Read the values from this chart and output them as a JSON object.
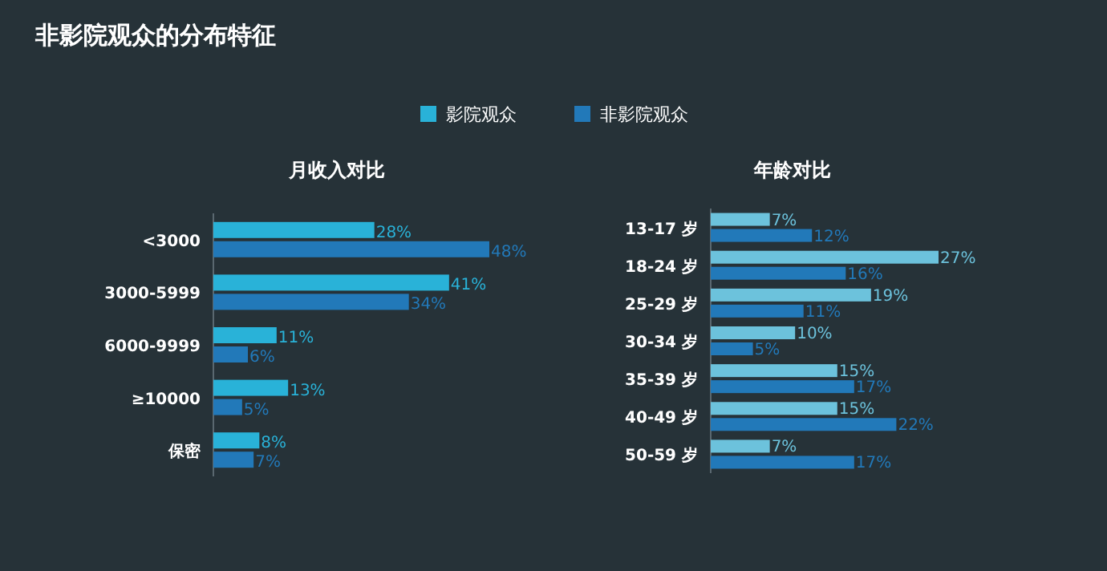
{
  "chart_data": [
    {
      "type": "bar",
      "orientation": "horizontal",
      "title": "非影院观众的分布特征",
      "subtitle": "月收入对比",
      "categories": [
        "<3000",
        "3000-5999",
        "6000-9999",
        "≥10000",
        "保密"
      ],
      "legend": "top",
      "series": [
        {
          "name": "影院观众",
          "color": "#29b2d8",
          "values": [
            28,
            41,
            11,
            13,
            8
          ],
          "value_labels": [
            "28%",
            "41%",
            "11%",
            "13%",
            "8%"
          ]
        },
        {
          "name": "非影院观众",
          "color": "#2279b9",
          "values": [
            48,
            34,
            6,
            5,
            7
          ],
          "value_labels": [
            "48%",
            "34%",
            "6%",
            "5%",
            "7%"
          ]
        }
      ]
    },
    {
      "type": "bar",
      "orientation": "horizontal",
      "subtitle": "年龄对比",
      "categories": [
        "13-17 岁",
        "18-24 岁",
        "25-29 岁",
        "30-34 岁",
        "35-39 岁",
        "40-49 岁",
        "50-59 岁"
      ],
      "series": [
        {
          "color": "#6cc2dc",
          "values": [
            7,
            27,
            19,
            10,
            15,
            15,
            7
          ],
          "value_labels": [
            "7%",
            "27%",
            "19%",
            "10%",
            "15%",
            "15%",
            "7%"
          ]
        },
        {
          "color": "#2279b9",
          "values": [
            12,
            16,
            11,
            5,
            17,
            22,
            17
          ],
          "value_labels": [
            "12%",
            "16%",
            "11%",
            "5%",
            "17%",
            "22%",
            "17%"
          ]
        }
      ]
    }
  ]
}
